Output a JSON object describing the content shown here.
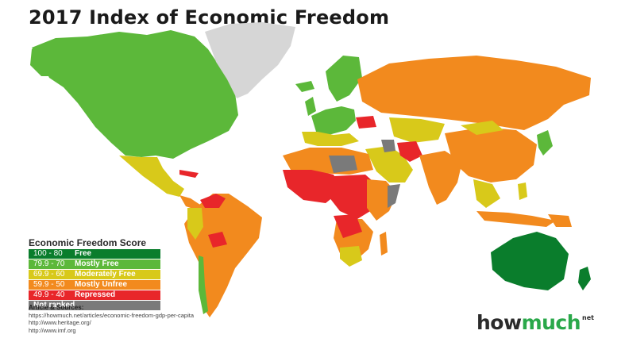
{
  "title": "2017 Index of Economic Freedom",
  "colors": {
    "free": "#0a7d2c",
    "mostly_free": "#5cb83a",
    "moderately_free": "#d8c91a",
    "mostly_unfree": "#f28a1e",
    "repressed": "#e8262a",
    "not_ranked": "#7a7a7a",
    "greenland": "#d6d6d6",
    "ocean": "#ffffff"
  },
  "legend": {
    "title": "Economic Freedom Score",
    "items": [
      {
        "range": "100 - 80",
        "label": "Free",
        "color": "#0a7d2c"
      },
      {
        "range": "79.9 - 70",
        "label": "Mostly Free",
        "color": "#5cb83a"
      },
      {
        "range": "69.9 - 60",
        "label": "Moderately Free",
        "color": "#d8c91a"
      },
      {
        "range": "59.9 - 50",
        "label": "Mostly Unfree",
        "color": "#f28a1e"
      },
      {
        "range": "49.9 - 40",
        "label": "Repressed",
        "color": "#e8262a"
      },
      {
        "range": "",
        "label": "Not ranked",
        "color": "#7a7a7a"
      }
    ]
  },
  "sources": {
    "heading": "Article & Sources:",
    "links": [
      "https://howmuch.net/articles/economic-freedom-gdp-per-capita",
      "http://www.heritage.org/",
      "http://www.imf.org"
    ]
  },
  "brand": {
    "part_a": "how",
    "part_b": "much",
    "suffix": "net"
  }
}
